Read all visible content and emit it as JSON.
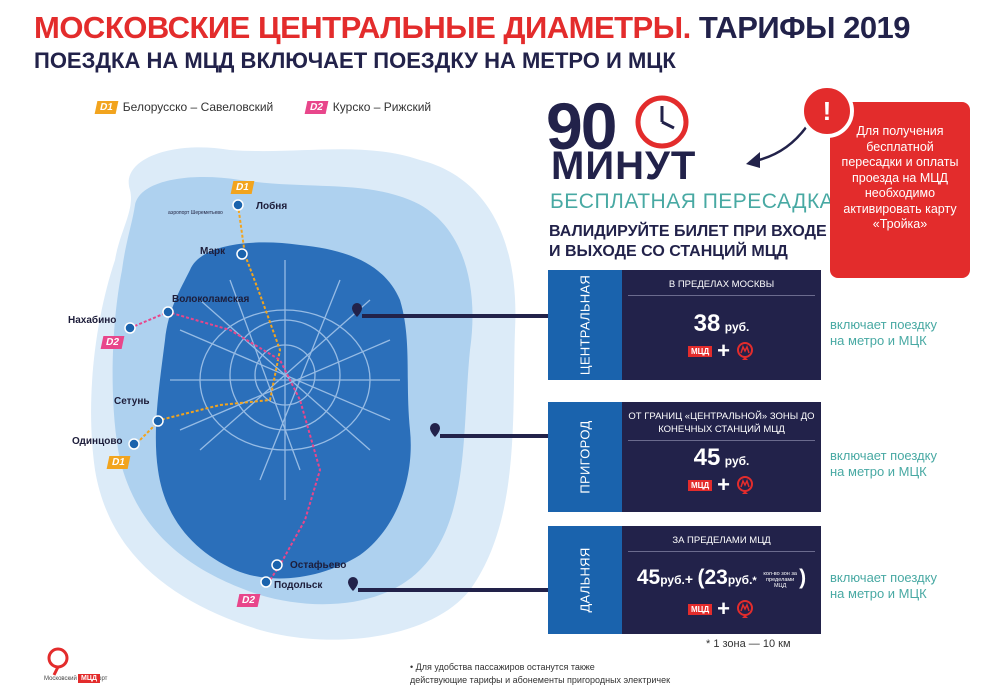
{
  "header": {
    "title_red": "МОСКОВСКИЕ ЦЕНТРАЛЬНЫЕ ДИАМЕТРЫ.",
    "title_dark": "ТАРИФЫ 2019",
    "subtitle": "ПОЕЗДКА НА МЦД ВКЛЮЧАЕТ ПОЕЗДКУ НА МЕТРО И МЦК"
  },
  "legend": [
    {
      "tag": "D1",
      "label": "Белорусско – Савеловский",
      "color": "#f2a41e"
    },
    {
      "tag": "D2",
      "label": "Курско – Рижский",
      "color": "#e8468b"
    }
  ],
  "map": {
    "stations": {
      "lobnya": "Лобня",
      "mark": "Марк",
      "volokolamskaya": "Волоколамская",
      "nakhabino": "Нахабино",
      "setun": "Сетунь",
      "odintsovo": "Одинцово",
      "ostafyevo": "Остафьево",
      "podolsk": "Подольск",
      "airport": "аэропорт Шереметьево"
    },
    "tags": {
      "d1_top": "D1",
      "d2_left": "D2",
      "d1_left": "D1",
      "d2_bottom": "D2"
    }
  },
  "promo": {
    "number": "90",
    "unit": "МИНУТ",
    "free_transfer": "БЕСПЛАТНАЯ ПЕРЕСАДКА",
    "validate_line1": "ВАЛИДИРУЙТЕ БИЛЕТ ПРИ ВХОДЕ",
    "validate_line2": "И ВЫХОДЕ СО СТАНЦИЙ МЦД"
  },
  "alert": {
    "icon": "!",
    "text": "Для получения бесплатной пересадки и оплаты проезда на МЦД необходимо активировать карту «Тройка»"
  },
  "zones": [
    {
      "name": "ЦЕНТРАЛЬНАЯ",
      "head": "В ПРЕДЕЛАХ МОСКВЫ",
      "price": "38",
      "rub": "руб.",
      "mcd": "МЦД",
      "includes": "включает поездку на метро и МЦК"
    },
    {
      "name": "ПРИГОРОД",
      "head": "ОТ ГРАНИЦ «ЦЕНТРАЛЬНОЙ» ЗОНЫ ДО КОНЕЧНЫХ СТАНЦИЙ МЦД",
      "price": "45",
      "rub": "руб.",
      "mcd": "МЦД",
      "includes": "включает поездку на метро и МЦК"
    },
    {
      "name": "ДАЛЬНЯЯ",
      "head": "ЗА ПРЕДЕЛАМИ МЦД",
      "price": "45",
      "rub": "руб.",
      "extra_price": "23",
      "extra_note": "кол-во зон за пределами МЦД",
      "mcd": "МЦД",
      "includes": "включает поездку на метро и МЦК"
    }
  ],
  "footnote": "* 1 зона — 10 км",
  "bottom_note": {
    "line1": "• Для удобства пассажиров останутся также",
    "line2": "действующие тарифы и абонементы пригородных электричек"
  },
  "logo": {
    "name": "Московский Транспорт",
    "badge": "МЦД"
  },
  "colors": {
    "red": "#e32c2c",
    "navy": "#22224a",
    "blue": "#1a63ad",
    "teal": "#48a9a3",
    "d1": "#f2a41e",
    "d2": "#e8468b"
  }
}
